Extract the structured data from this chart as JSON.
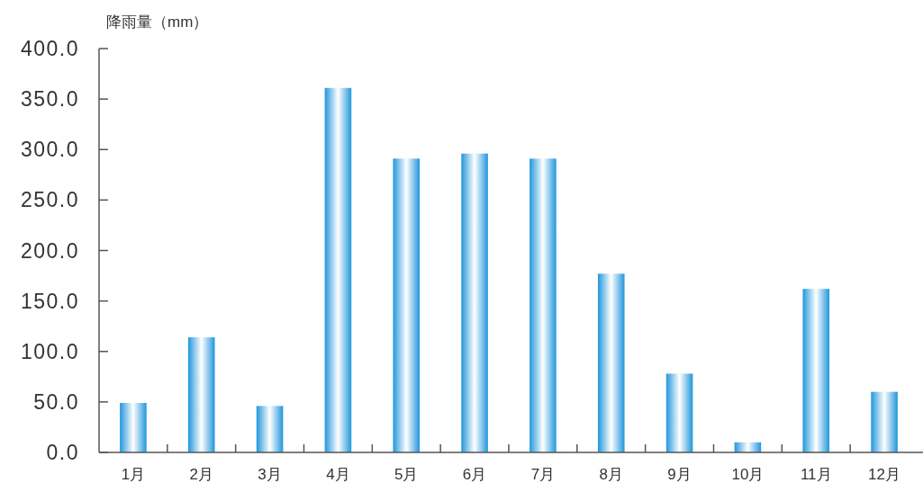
{
  "chart_data": {
    "type": "bar",
    "ylabel": "降雨量（mm）",
    "categories": [
      "1月",
      "2月",
      "3月",
      "4月",
      "5月",
      "6月",
      "7月",
      "8月",
      "9月",
      "10月",
      "11月",
      "12月"
    ],
    "values": [
      49,
      114,
      46,
      361,
      291,
      296,
      291,
      177,
      78,
      10,
      162,
      60
    ],
    "color": "#2196dc",
    "ylim": [
      0,
      400
    ],
    "yticks": [
      {
        "value": 0,
        "label": "0.0"
      },
      {
        "value": 50,
        "label": "50.0"
      },
      {
        "value": 100,
        "label": "100.0"
      },
      {
        "value": 150,
        "label": "150.0"
      },
      {
        "value": 200,
        "label": "200.0"
      },
      {
        "value": 250,
        "label": "250.0"
      },
      {
        "value": 300,
        "label": "300.0"
      },
      {
        "value": 350,
        "label": "350.0"
      },
      {
        "value": 400,
        "label": "400.0"
      }
    ],
    "grid": false
  }
}
